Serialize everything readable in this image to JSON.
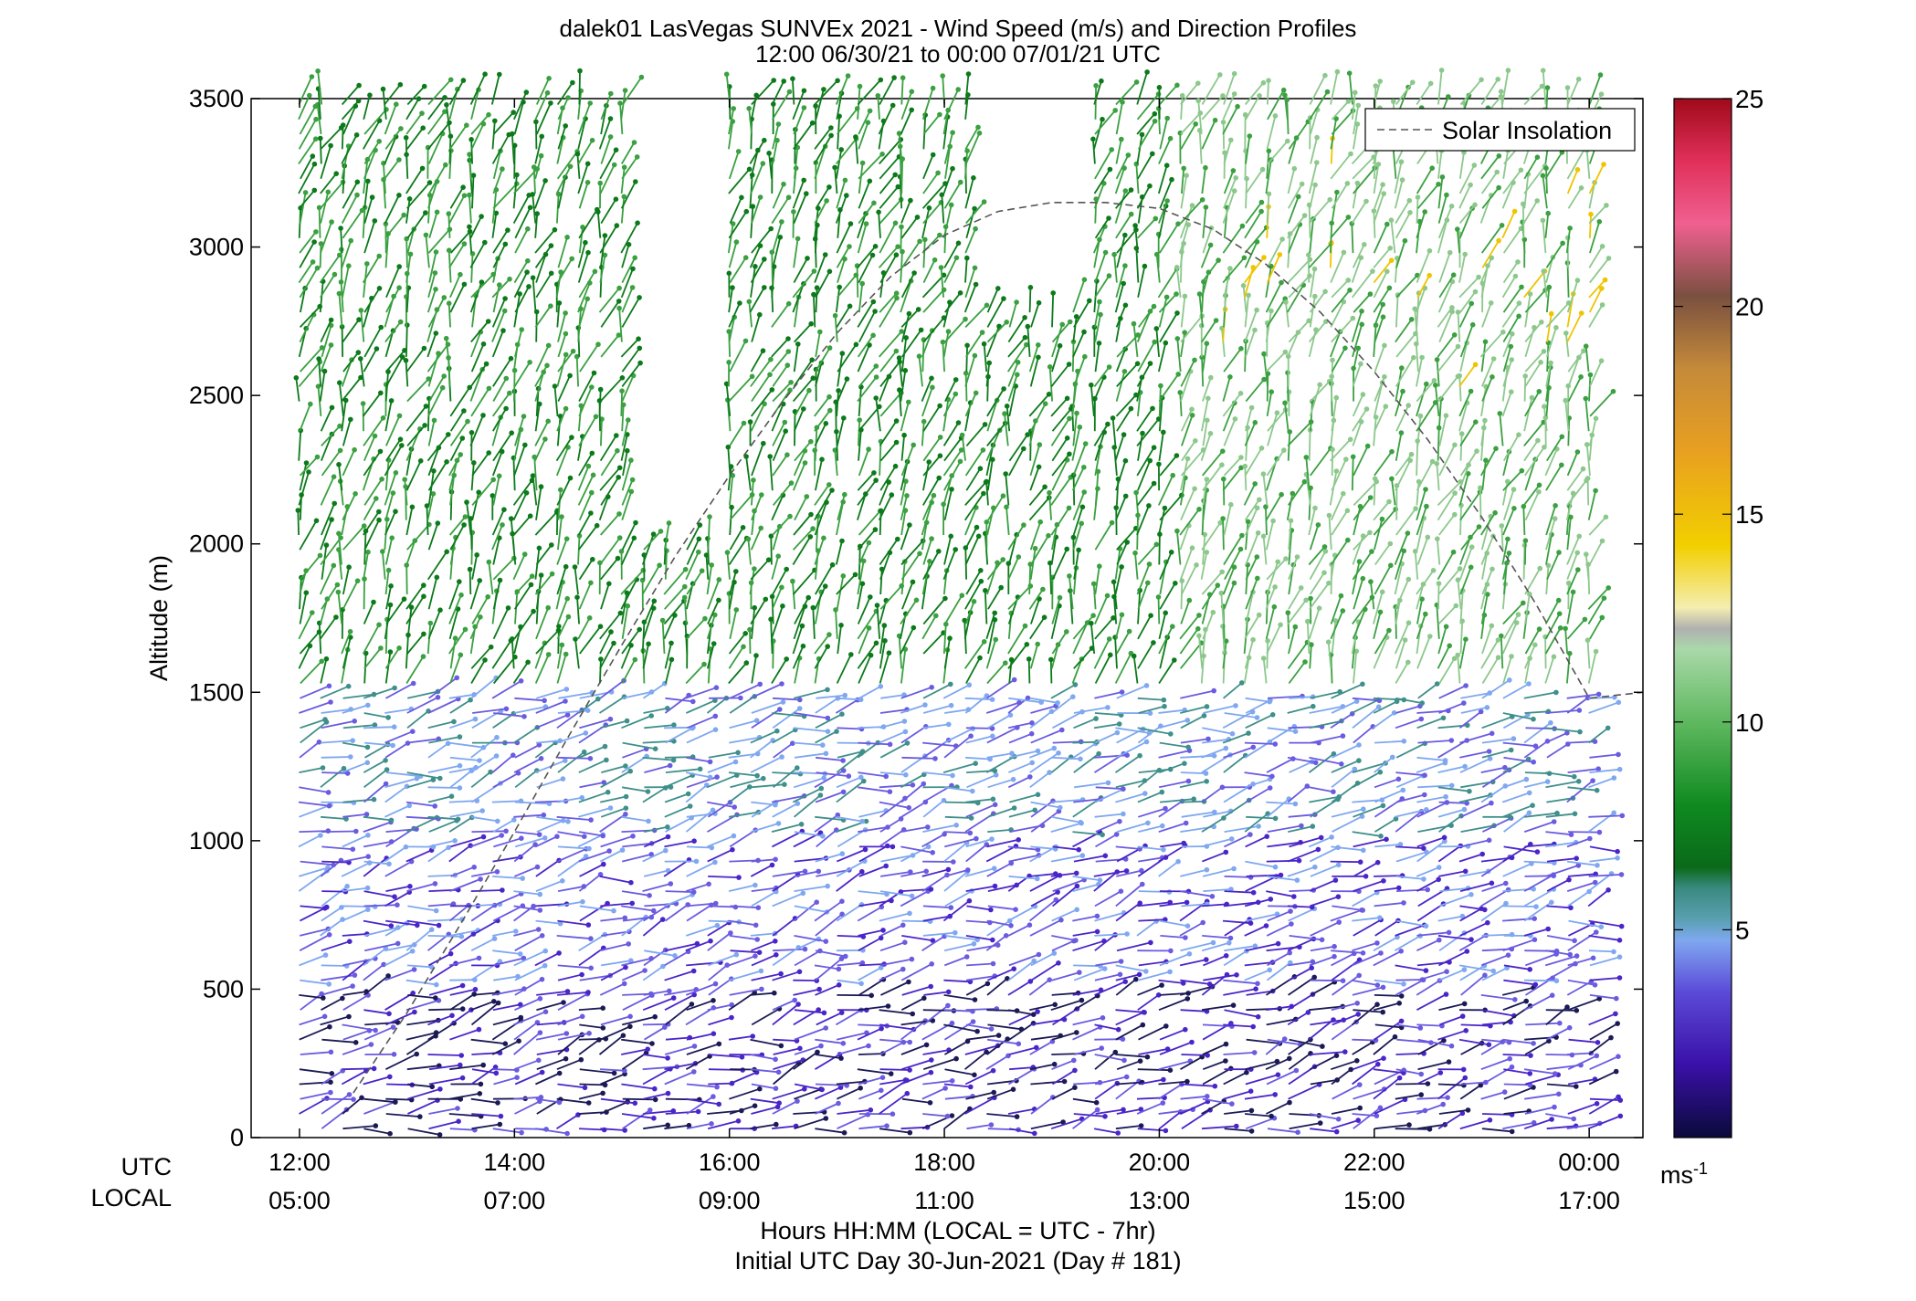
{
  "chart_data": {
    "type": "wind-profile",
    "title": "dalek01 LasVegas SUNVEx 2021 - Wind Speed (m/s) and Direction Profiles",
    "subtitle": "12:00 06/30/21 to 00:00 07/01/21  UTC",
    "ylabel": "Altitude (m)",
    "xlabel": "Hours HH:MM  (LOCAL = UTC - 7hr)",
    "xlabel2": "Initial UTC Day 30-Jun-2021 (Day # 181)",
    "row_label_utc": "UTC",
    "row_label_local": "LOCAL",
    "ylim": [
      0,
      3500
    ],
    "xlim_hours": [
      11.55,
      24.5
    ],
    "yticks": [
      0,
      500,
      1000,
      1500,
      2000,
      2500,
      3000,
      3500
    ],
    "xticks_utc": [
      "12:00",
      "14:00",
      "16:00",
      "18:00",
      "20:00",
      "22:00",
      "00:00"
    ],
    "xticks_local": [
      "05:00",
      "07:00",
      "09:00",
      "11:00",
      "13:00",
      "15:00",
      "17:00"
    ],
    "xtick_hours": [
      12,
      14,
      16,
      18,
      20,
      22,
      24
    ],
    "legend": {
      "entries": [
        "Solar Insolation"
      ],
      "placement": "top-right"
    },
    "colorbar": {
      "min": 0,
      "max": 25,
      "ticks": [
        5,
        10,
        15,
        20,
        25
      ],
      "unit_label": "ms",
      "unit_exponent": "-1"
    },
    "solar_insolation": {
      "x_hours": [
        12.5,
        13.0,
        13.5,
        14.0,
        14.5,
        15.0,
        15.5,
        16.0,
        16.5,
        17.0,
        17.5,
        18.0,
        18.5,
        19.0,
        19.5,
        20.0,
        20.5,
        21.0,
        21.5,
        22.0,
        22.5,
        23.0,
        23.5,
        24.0,
        24.5
      ],
      "y_altitude": [
        150,
        420,
        720,
        1030,
        1350,
        1660,
        1960,
        2230,
        2480,
        2710,
        2900,
        3040,
        3120,
        3150,
        3150,
        3130,
        3060,
        2940,
        2780,
        2580,
        2350,
        2090,
        1800,
        1480,
        1500
      ]
    }
  }
}
